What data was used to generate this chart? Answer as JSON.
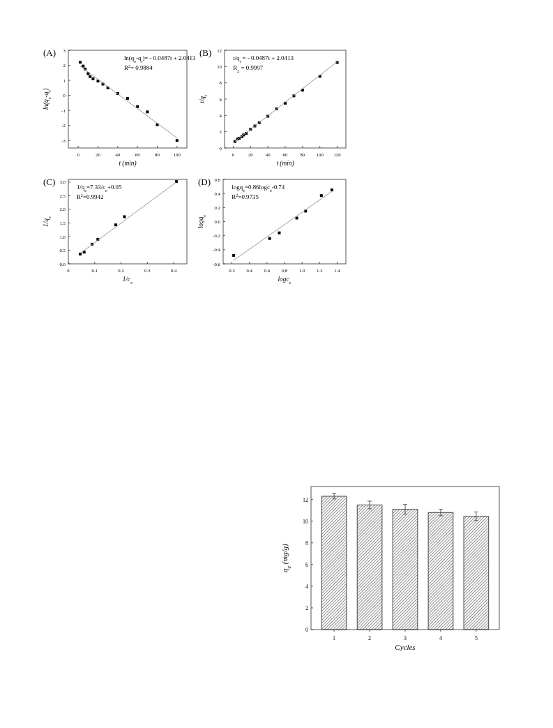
{
  "chart_data": [
    {
      "type": "scatter",
      "title": "(A)",
      "xlabel": "t (min)",
      "ylabel": "ln(q$_{e}$-q$_{t}$)",
      "xlim": [
        -10,
        110
      ],
      "ylim": [
        -3.5,
        3
      ],
      "xticks": [
        0,
        20,
        40,
        60,
        80,
        100
      ],
      "yticks": [
        -3,
        -2,
        -1,
        0,
        1,
        2,
        3
      ],
      "annotations": [
        "ln(q$_{e}$-q$_{t}$)= - 0.0487t + 2.0413",
        "R$^{2}$= 0.9884"
      ],
      "series": [
        {
          "marker": "square",
          "color": "#000000",
          "x": [
            2,
            5,
            7,
            10,
            12,
            15,
            20,
            25,
            30,
            40,
            50,
            60,
            70,
            80,
            100
          ],
          "values": [
            2.2,
            1.95,
            1.75,
            1.45,
            1.25,
            1.1,
            0.95,
            0.75,
            0.5,
            0.12,
            -0.2,
            -0.75,
            -1.1,
            -1.95,
            -3.0
          ]
        },
        {
          "type": "line",
          "color": "#999999",
          "x": [
            2,
            100
          ],
          "values": [
            1.94,
            -2.83
          ]
        }
      ]
    },
    {
      "type": "scatter",
      "title": "(B)",
      "xlabel": "t (min)",
      "ylabel": "t/q$_{t}$",
      "xlim": [
        -10,
        130
      ],
      "ylim": [
        0,
        12
      ],
      "xticks": [
        0,
        20,
        40,
        60,
        80,
        100,
        120
      ],
      "yticks": [
        0,
        2,
        4,
        6,
        8,
        10,
        12
      ],
      "annotations": [
        "t/q$_{t}$ = - 0.0487t + 2.0413",
        "R$_{2}$ = 0.9997"
      ],
      "series": [
        {
          "marker": "square",
          "color": "#000000",
          "x": [
            2,
            5,
            7,
            10,
            12,
            15,
            20,
            25,
            30,
            40,
            50,
            60,
            70,
            80,
            100,
            120
          ],
          "values": [
            0.8,
            1.1,
            1.2,
            1.4,
            1.6,
            1.8,
            2.3,
            2.7,
            3.1,
            3.9,
            4.8,
            5.5,
            6.4,
            7.1,
            8.8,
            10.5
          ]
        },
        {
          "type": "line",
          "color": "#999999",
          "x": [
            2,
            120
          ],
          "values": [
            0.8,
            10.6
          ]
        }
      ]
    },
    {
      "type": "scatter",
      "title": "(C)",
      "xlabel": "1/c$_{e}$",
      "ylabel": "1/q$_{e}$",
      "xlim": [
        0,
        0.45
      ],
      "ylim": [
        0,
        3.1
      ],
      "xticks": [
        0.0,
        0.1,
        0.2,
        0.3,
        0.4
      ],
      "yticks": [
        {
          "value": 0,
          "label": "0.0"
        },
        0.5,
        {
          "value": 1,
          "label": "1.0"
        },
        1.5,
        {
          "value": 2,
          "label": "2.0"
        },
        2.5,
        {
          "value": 3,
          "label": "3.0"
        }
      ],
      "annotations": [
        "1/q$_{e}$=7.33/c$_{e}$+0.05",
        "R$^{2}$=0.9942"
      ],
      "series": [
        {
          "marker": "square",
          "color": "#000000",
          "x": [
            0.045,
            0.06,
            0.09,
            0.112,
            0.18,
            0.213,
            0.41
          ],
          "values": [
            0.36,
            0.43,
            0.72,
            0.9,
            1.43,
            1.73,
            3.02
          ]
        },
        {
          "type": "line",
          "color": "#999999",
          "x": [
            0.05,
            0.41
          ],
          "values": [
            0.42,
            3.0
          ]
        }
      ]
    },
    {
      "type": "scatter",
      "title": "(D)",
      "xlabel": "logc$_{e}$",
      "ylabel": "logq$_{e}$",
      "xlim": [
        0.1,
        1.5
      ],
      "ylim": [
        -0.6,
        0.6
      ],
      "xticks": [
        0.2,
        0.4,
        0.6,
        0.8,
        {
          "value": 1,
          "label": "1.0"
        },
        1.2,
        1.4
      ],
      "yticks": [
        -0.6,
        -0.4,
        -0.2,
        {
          "value": 0,
          "label": "0.0"
        },
        0.2,
        0.4,
        0.6
      ],
      "annotations": [
        "logq$_{e}$=0.86logc$_{e}$-0.74",
        "R$^{2}$=0.9735"
      ],
      "series": [
        {
          "marker": "square",
          "color": "#000000",
          "x": [
            0.22,
            0.63,
            0.74,
            0.94,
            1.04,
            1.22,
            1.34
          ],
          "values": [
            -0.48,
            -0.24,
            -0.16,
            0.05,
            0.15,
            0.37,
            0.45
          ]
        },
        {
          "type": "line",
          "color": "#999999",
          "x": [
            0.22,
            1.34
          ],
          "values": [
            -0.55,
            0.43
          ]
        }
      ]
    },
    {
      "type": "bar",
      "xlabel": "Cycles",
      "ylabel": "q$_{e}$ (mg/g)",
      "categories": [
        "1",
        "2",
        "3",
        "4",
        "5"
      ],
      "ylim": [
        0,
        13.2
      ],
      "yticks": [
        0,
        2,
        4,
        6,
        8,
        10,
        12
      ],
      "color": "#444444",
      "values": [
        12.3,
        11.5,
        11.1,
        10.8,
        10.45
      ],
      "errors": [
        0.25,
        0.35,
        0.45,
        0.3,
        0.4
      ]
    }
  ]
}
